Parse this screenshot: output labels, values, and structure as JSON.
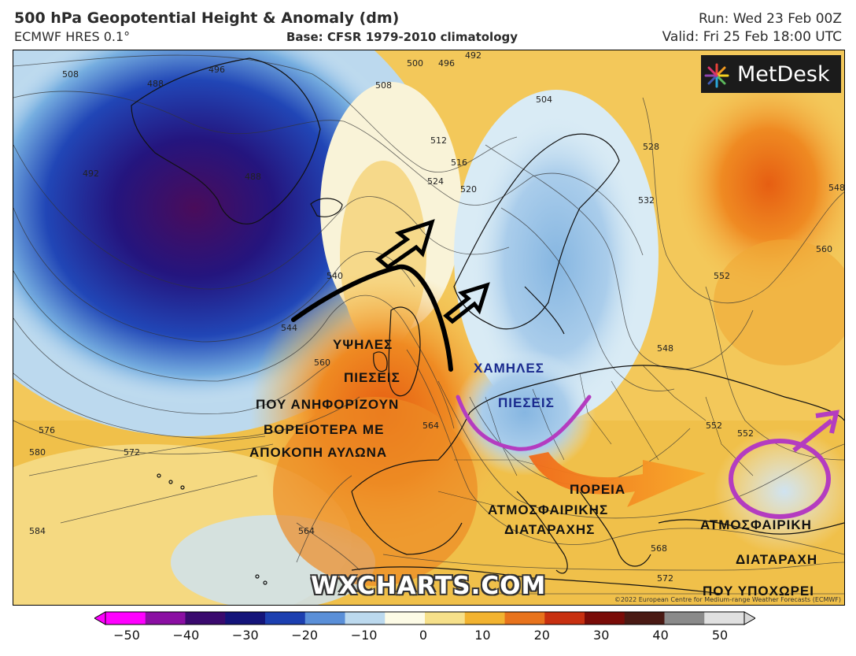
{
  "header": {
    "title": "500 hPa Geopotential Height & Anomaly (dm)",
    "model": "ECMWF HRES 0.1°",
    "base": "Base: CFSR 1979-2010 climatology",
    "run": "Run: Wed 23 Feb 00Z",
    "valid": "Valid: Fri 25 Feb 18:00 UTC"
  },
  "logo": {
    "text": "MetDesk",
    "icon": "color-burst-icon"
  },
  "watermark": "WXCHARTS.COM",
  "copyright": "©2022 European Centre for Medium-range Weather Forecasts (ECMWF)",
  "annotations": {
    "high_1": "ΥΨΗΛΕΣ",
    "high_2": "ΠΙΕΣΕΙΣ",
    "high_3": "ΠΟΥ ΑΝΗΦΟΡΙΖΟΥΝ",
    "high_4": "ΒΟΡΕΙΟΤΕΡΑ ΜΕ",
    "high_5": "ΑΠΟΚΟΠΗ ΑΥΛΩΝΑ",
    "low_1": "ΧΑΜΗΛΕΣ",
    "low_2": "ΠΙΕΣΕΙΣ",
    "path_1": "ΠΟΡΕΙΑ",
    "path_2": "ΑΤΜΟΣΦΑΙΡΙΚΗΣ",
    "path_3": "ΔΙΑΤΑΡΑΧΗΣ",
    "dist_1": "ΑΤΜΟΣΦΑΙΡΙΚΗ",
    "dist_2": "ΔΙΑΤΑΡΑΧΗ",
    "dist_3": "ΠΟΥ ΥΠΟΧΩΡΕΙ"
  },
  "contour_labels": [
    "508",
    "488",
    "496",
    "500",
    "496",
    "492",
    "508",
    "504",
    "512",
    "516",
    "524",
    "520",
    "528",
    "532",
    "548",
    "560",
    "552",
    "540",
    "544",
    "560",
    "552",
    "548",
    "564",
    "576",
    "572",
    "580",
    "584",
    "564",
    "568",
    "572",
    "552",
    "488",
    "492"
  ],
  "colorbar": {
    "ticks": [
      "−50",
      "−40",
      "−30",
      "−20",
      "−10",
      "0",
      "10",
      "20",
      "30",
      "40",
      "50"
    ],
    "colors": [
      "#ff00ff",
      "#8b0fa3",
      "#3a0a6e",
      "#14147a",
      "#1c3fb0",
      "#5a8fd8",
      "#bcd9ee",
      "#fdfbe6",
      "#f6e08a",
      "#f2b330",
      "#e8731c",
      "#c83010",
      "#7a0c08",
      "#4a1a14",
      "#8a8a8a",
      "#e0e0e0"
    ]
  }
}
